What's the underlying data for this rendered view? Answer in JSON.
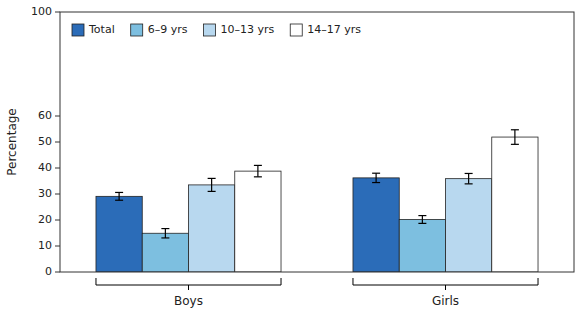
{
  "chart_data": {
    "type": "bar",
    "ylabel": "Percentage",
    "categories": [
      "Boys",
      "Girls"
    ],
    "series": [
      {
        "name": "Total",
        "color": "#2b6cb8",
        "values": [
          29.1,
          36.2
        ],
        "errors": [
          1.5,
          1.8
        ]
      },
      {
        "name": "6–9 yrs",
        "color": "#7dbfe0",
        "values": [
          14.9,
          20.2
        ],
        "errors": [
          1.8,
          1.5
        ]
      },
      {
        "name": "10–13 yrs",
        "color": "#b8d8ef",
        "values": [
          33.5,
          35.9
        ],
        "errors": [
          2.5,
          2.0
        ]
      },
      {
        "name": "14–17 yrs",
        "color": "#ffffff",
        "values": [
          38.8,
          51.9
        ],
        "errors": [
          2.2,
          2.8
        ]
      }
    ],
    "ylim": [
      0,
      100
    ],
    "yticks": [
      0,
      10,
      20,
      30,
      40,
      50,
      60,
      100
    ],
    "grid": false,
    "legend": "upper left"
  }
}
